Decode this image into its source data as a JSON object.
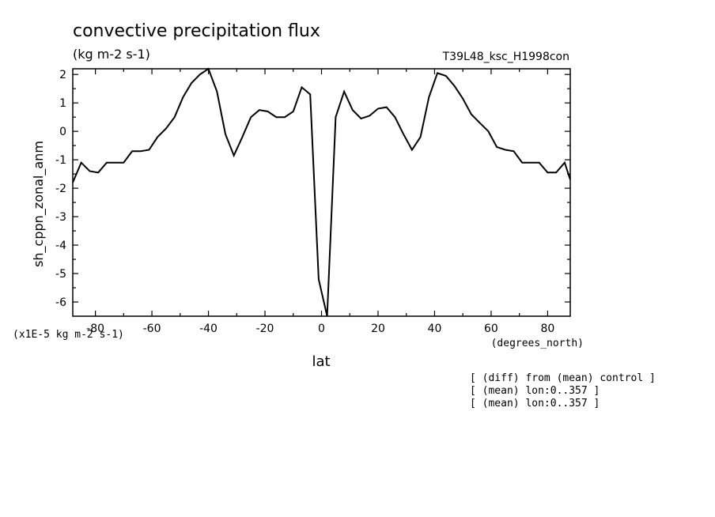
{
  "chart_data": {
    "type": "line",
    "title": "convective precipitation flux",
    "subtitle": "(kg m-2 s-1)",
    "run_label": "T39L48_ksc_H1998con",
    "xlabel": "lat",
    "x_units": "(degrees_north)",
    "ylabel": "sh_cppn_zonal_anm",
    "y_scale_note": "(x1E-5 kg m-2 s-1)",
    "xlim": [
      -88,
      88
    ],
    "ylim": [
      -6.5,
      2.2
    ],
    "x_ticks": [
      -80,
      -60,
      -40,
      -20,
      0,
      20,
      40,
      60,
      80
    ],
    "y_ticks": [
      -6,
      -5,
      -4,
      -3,
      -2,
      -1,
      0,
      1,
      2
    ],
    "grid": false,
    "series": [
      {
        "x": [
          -88,
          -85,
          -82,
          -79,
          -76,
          -73,
          -70,
          -67,
          -64,
          -61,
          -58,
          -55,
          -52,
          -49,
          -46,
          -43,
          -40,
          -37,
          -34,
          -31,
          -28,
          -25,
          -22,
          -19,
          -16,
          -13,
          -10,
          -7,
          -4,
          -1,
          2,
          5,
          8,
          11,
          14,
          17,
          20,
          23,
          26,
          29,
          32,
          35,
          38,
          41,
          44,
          47,
          50,
          53,
          56,
          59,
          62,
          65,
          68,
          71,
          74,
          77,
          80,
          83,
          86,
          88
        ],
        "y": [
          -1.8,
          -1.1,
          -1.4,
          -1.45,
          -1.1,
          -1.1,
          -1.1,
          -0.7,
          -0.7,
          -0.65,
          -0.2,
          0.1,
          0.5,
          1.2,
          1.7,
          2.0,
          2.2,
          1.4,
          -0.1,
          -0.85,
          -0.2,
          0.5,
          0.75,
          0.7,
          0.5,
          0.5,
          0.7,
          1.55,
          1.3,
          -5.2,
          -6.5,
          0.5,
          1.4,
          0.75,
          0.45,
          0.55,
          0.8,
          0.85,
          0.5,
          -0.1,
          -0.65,
          -0.2,
          1.2,
          2.05,
          1.95,
          1.6,
          1.15,
          0.6,
          0.3,
          0.0,
          -0.55,
          -0.65,
          -0.7,
          -1.1,
          -1.1,
          -1.1,
          -1.45,
          -1.45,
          -1.1,
          -1.7
        ]
      }
    ]
  },
  "annotations": [
    "[ (diff) from (mean) control ]",
    "[ (mean) lon:0..357 ]",
    "[ (mean) lon:0..357 ]"
  ]
}
